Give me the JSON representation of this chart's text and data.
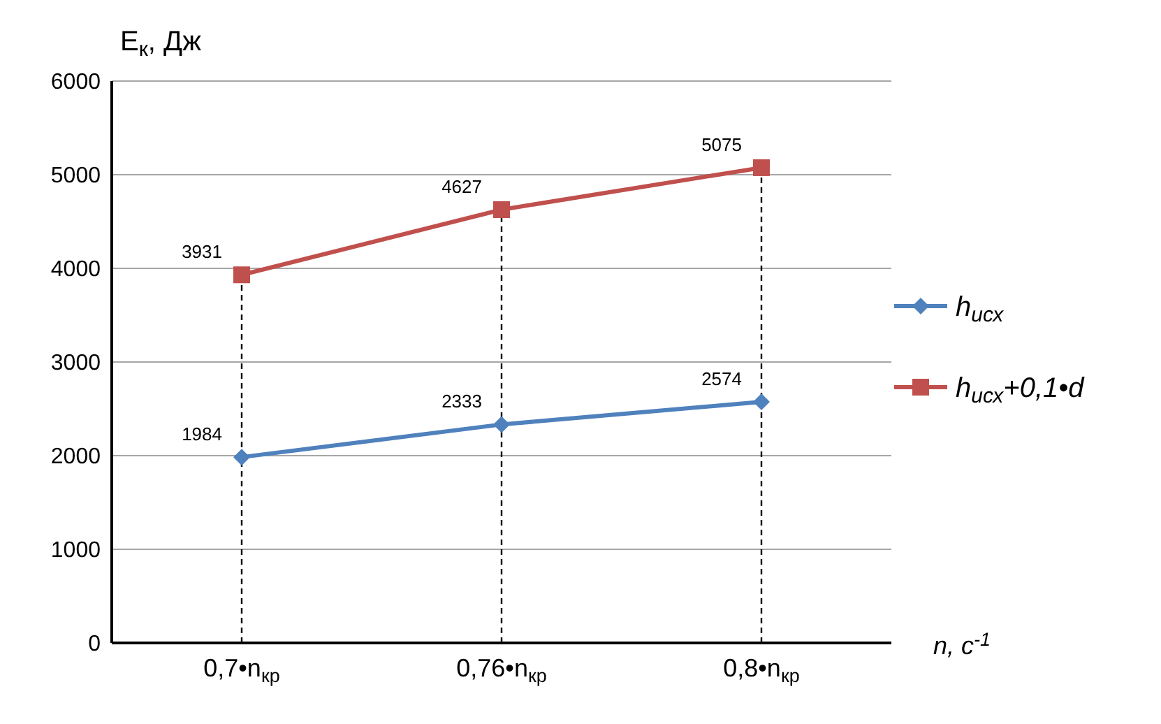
{
  "chart_data": {
    "type": "line",
    "xlabel": "n, c$^{-1}$",
    "ylabel": "E$_{к}$,  Дж",
    "categories": [
      "0,7•n$_{кр}$",
      "0,76•n$_{кр}$",
      "0,8•n$_{кр}$"
    ],
    "series": [
      {
        "name": "h$_{исх}$",
        "color": "#4f81bd",
        "marker": "diamond",
        "values": [
          1984,
          2333,
          2574
        ]
      },
      {
        "name": "h$_{исх}$+0,1•d",
        "color": "#c0504d",
        "marker": "square",
        "values": [
          3931,
          4627,
          5075
        ]
      }
    ],
    "ylim": [
      0,
      6000
    ],
    "yticks": [
      0,
      1000,
      2000,
      3000,
      4000,
      5000,
      6000
    ],
    "grid": "y",
    "legend": "right",
    "data_labels": true,
    "ref_lines": [
      {
        "axis": "x",
        "value": "0,7•n$_{кр}$",
        "line_style": "dashed",
        "color": "#000000"
      },
      {
        "axis": "x",
        "value": "0,76•n$_{кр}$",
        "line_style": "dashed",
        "color": "#000000"
      },
      {
        "axis": "x",
        "value": "0,8•n$_{кр}$",
        "line_style": "dashed",
        "color": "#000000"
      }
    ]
  }
}
